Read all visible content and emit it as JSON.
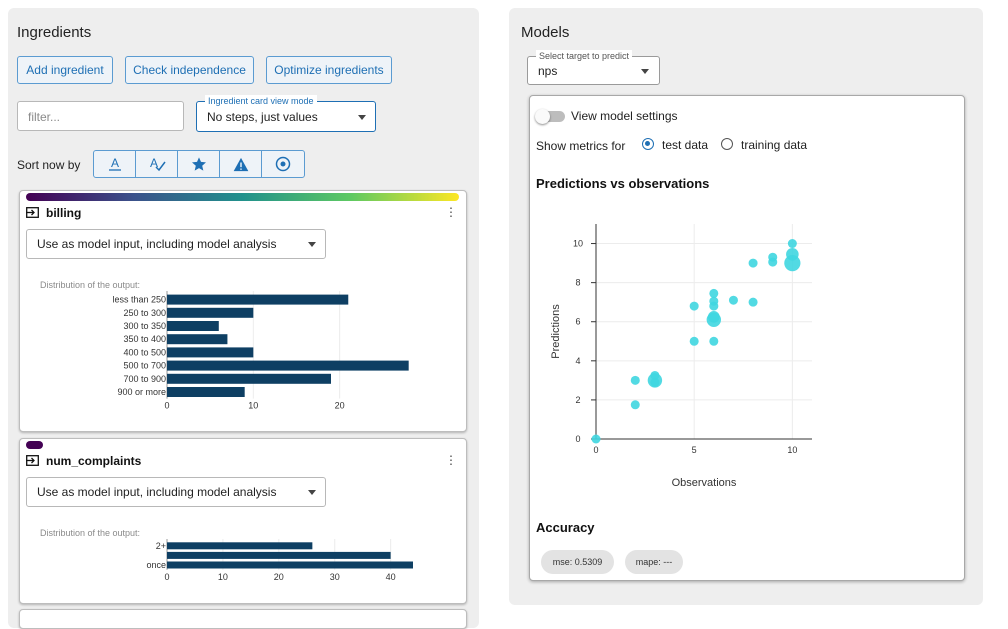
{
  "ingredients": {
    "title": "Ingredients",
    "buttons": {
      "add": "Add ingredient",
      "check": "Check independence",
      "optimize": "Optimize ingredients"
    },
    "filter": {
      "placeholder": "filter..."
    },
    "view_mode": {
      "label": "Ingredient card view mode",
      "value": "No steps, just values"
    },
    "sort": {
      "label": "Sort now by",
      "options": [
        "sort-alpha-icon",
        "spellcheck-icon",
        "star-icon",
        "warning-icon",
        "target-icon"
      ]
    },
    "cards": [
      {
        "name": "billing",
        "usage": "Use as model input, including model analysis",
        "gradient": [
          "#440154",
          "#3b528b",
          "#21918c",
          "#5ec962",
          "#fde725"
        ],
        "chart_title": "Distribution of the output:",
        "chart_data": {
          "type": "bar",
          "orientation": "horizontal",
          "categories": [
            "less than 250",
            "250 to 300",
            "300 to 350",
            "350 to 400",
            "400 to 500",
            "500 to 700",
            "700 to 900",
            "900 or more"
          ],
          "values": [
            21,
            10,
            6,
            7,
            10,
            28,
            19,
            9
          ],
          "xticks": [
            0,
            10,
            20
          ],
          "xlim": [
            0,
            28.5
          ],
          "color": "#0e3f63"
        }
      },
      {
        "name": "num_complaints",
        "usage": "Use as model input, including model analysis",
        "gradient": [
          "#440154"
        ],
        "chart_title": "Distribution of the output:",
        "chart_data": {
          "type": "bar",
          "orientation": "horizontal",
          "categories": [
            "2+",
            "",
            "once"
          ],
          "values": [
            26,
            40,
            44
          ],
          "xticks": [
            0,
            10,
            20,
            30,
            40
          ],
          "xlim": [
            0,
            44
          ],
          "color": "#0e3f63"
        }
      }
    ]
  },
  "models": {
    "title": "Models",
    "target": {
      "label": "Select target to predict",
      "value": "nps"
    },
    "settings_toggle": "View model settings",
    "metrics_label": "Show metrics for",
    "metrics_options": [
      {
        "label": "test data",
        "selected": true
      },
      {
        "label": "training data",
        "selected": false
      }
    ],
    "plot_title": "Predictions vs observations",
    "chart_data": {
      "type": "scatter",
      "xlabel": "Observations",
      "ylabel": "Predictions",
      "xlim": [
        0,
        11
      ],
      "ylim": [
        0,
        11
      ],
      "xticks": [
        0,
        5,
        10
      ],
      "yticks": [
        0,
        2,
        4,
        6,
        8,
        10
      ],
      "color": "#3fd6e0",
      "points": [
        {
          "x": 0,
          "y": 0,
          "size": 1
        },
        {
          "x": 2,
          "y": 3,
          "size": 1
        },
        {
          "x": 2,
          "y": 1.75,
          "size": 1
        },
        {
          "x": 3,
          "y": 3.25,
          "size": 1
        },
        {
          "x": 3,
          "y": 3.0,
          "size": 1.6
        },
        {
          "x": 3,
          "y": 2.9,
          "size": 1
        },
        {
          "x": 5,
          "y": 6.8,
          "size": 1
        },
        {
          "x": 5,
          "y": 5.0,
          "size": 1
        },
        {
          "x": 6,
          "y": 7.45,
          "size": 1
        },
        {
          "x": 6,
          "y": 7.05,
          "size": 1
        },
        {
          "x": 6,
          "y": 6.8,
          "size": 1
        },
        {
          "x": 6,
          "y": 6.25,
          "size": 1.3
        },
        {
          "x": 6,
          "y": 6.1,
          "size": 1.6
        },
        {
          "x": 6,
          "y": 5.0,
          "size": 1
        },
        {
          "x": 7,
          "y": 7.1,
          "size": 1
        },
        {
          "x": 8,
          "y": 7.0,
          "size": 1
        },
        {
          "x": 8,
          "y": 9.0,
          "size": 1
        },
        {
          "x": 9,
          "y": 9.3,
          "size": 1
        },
        {
          "x": 9,
          "y": 9.05,
          "size": 1
        },
        {
          "x": 10,
          "y": 10.0,
          "size": 1
        },
        {
          "x": 10,
          "y": 9.45,
          "size": 1.4
        },
        {
          "x": 10,
          "y": 9.0,
          "size": 1.8
        }
      ]
    },
    "accuracy_title": "Accuracy",
    "metrics_chips": [
      "mse: 0.5309",
      "mape: ---"
    ]
  }
}
